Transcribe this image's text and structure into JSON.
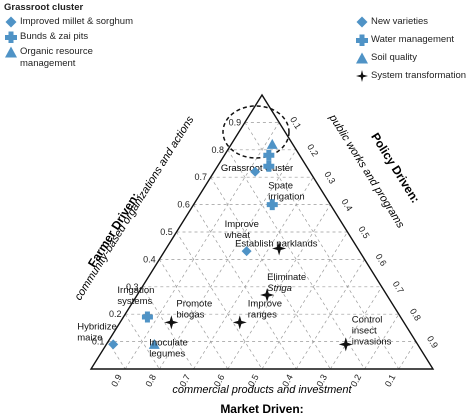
{
  "legend": {
    "title": "Grassroot cluster",
    "left": [
      {
        "marker": "diamond",
        "label": "Improved millet & sorghum"
      },
      {
        "marker": "cross",
        "label": "Bunds & zai pits"
      },
      {
        "marker": "triangle",
        "label": "Organic resource",
        "label2": "management"
      }
    ],
    "right": [
      {
        "marker": "diamond",
        "label": "New varieties"
      },
      {
        "marker": "cross",
        "label": "Water management"
      },
      {
        "marker": "triangle",
        "label": "Soil quality"
      },
      {
        "marker": "star",
        "label": "System transformation"
      }
    ]
  },
  "colors": {
    "marker": "#4f93c6",
    "star": "#111111",
    "grid": "#9a9a9a",
    "triangle": "#111111"
  },
  "axes": {
    "left_title": "Farmer Driven:",
    "left_subtitle": "community-based organizations and actions",
    "right_title": "Policy Driven:",
    "right_subtitle": "public works and programs",
    "bottom_subtitle": "commercial products and investment",
    "bottom_title": "Market Driven:",
    "left_ticks": [
      "0.1",
      "0.2",
      "0.3",
      "0.4",
      "0.5",
      "0.6",
      "0.7",
      "0.8",
      "0.9"
    ],
    "right_ticks": [
      "0.9",
      "0.8",
      "0.7",
      "0.6",
      "0.5",
      "0.4",
      "0.3",
      "0.2",
      "0.1"
    ],
    "bottom_ticks": [
      "0.9",
      "0.8",
      "0.7",
      "0.6",
      "0.5",
      "0.4",
      "0.3",
      "0.2",
      "0.1"
    ]
  },
  "cluster_label": "Grassroot cluster",
  "points": [
    {
      "marker": "triangle",
      "farmer": 0.82,
      "policy": 0.12
    },
    {
      "marker": "cross",
      "farmer": 0.78,
      "policy": 0.13
    },
    {
      "marker": "cross",
      "farmer": 0.74,
      "policy": 0.15
    },
    {
      "marker": "diamond",
      "farmer": 0.72,
      "policy": 0.12
    }
  ],
  "labeled_points": [
    {
      "marker": "diamond",
      "label": "Improve",
      "label2": "wheat",
      "farmer": 0.43,
      "policy": 0.24
    },
    {
      "marker": "cross",
      "label": "Spate",
      "label2": "irrigation",
      "farmer": 0.6,
      "policy": 0.23
    },
    {
      "marker": "star",
      "label": "Establish parklands",
      "label2": "",
      "farmer": 0.44,
      "policy": 0.33
    },
    {
      "marker": "star",
      "label": "Eliminate",
      "label2": "Striga",
      "farmer": 0.27,
      "policy": 0.38
    },
    {
      "marker": "cross",
      "label": "Irrigation",
      "label2": "systems",
      "farmer": 0.19,
      "policy": 0.07
    },
    {
      "marker": "star",
      "label": "Promote",
      "label2": "biogas",
      "farmer": 0.17,
      "policy": 0.15
    },
    {
      "marker": "star",
      "label": "Improve",
      "label2": "ranges",
      "farmer": 0.17,
      "policy": 0.35
    },
    {
      "marker": "diamond",
      "label": "Hybridize",
      "label2": "maize",
      "farmer": 0.09,
      "policy": 0.02
    },
    {
      "marker": "triangle",
      "label": "Inoculate",
      "label2": "legumes",
      "farmer": 0.09,
      "policy": 0.14
    },
    {
      "marker": "star",
      "label": "Control",
      "label2": "insect",
      "label3": "invasions",
      "farmer": 0.09,
      "policy": 0.7
    }
  ]
}
